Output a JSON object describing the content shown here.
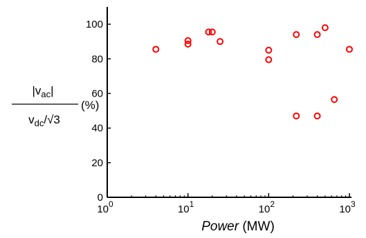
{
  "chart_data": {
    "type": "scatter",
    "title": "",
    "xlabel": {
      "italic": "Power",
      "unit": "(MW)"
    },
    "ylabel": {
      "numerator": {
        "main": "|v",
        "sub": "ac",
        "end": "|"
      },
      "denominator": {
        "main": "v",
        "sub": "dc",
        "slash": "/√3"
      },
      "unit": "(%)"
    },
    "xscale": "log",
    "xlim": [
      1,
      1000
    ],
    "ylim": [
      0,
      110
    ],
    "yticks": [
      "0",
      "20",
      "40",
      "60",
      "80",
      "100"
    ],
    "xticks": [
      {
        "base": "10",
        "exp": "0"
      },
      {
        "base": "10",
        "exp": "1"
      },
      {
        "base": "10",
        "exp": "2"
      },
      {
        "base": "10",
        "exp": "3"
      }
    ],
    "grid": false,
    "marker": "open-circle",
    "marker_color": "#ff0000",
    "points": [
      {
        "x": 4,
        "y": 85.5
      },
      {
        "x": 10,
        "y": 90.5
      },
      {
        "x": 10,
        "y": 88.5
      },
      {
        "x": 18,
        "y": 95.5
      },
      {
        "x": 20,
        "y": 95.5
      },
      {
        "x": 25,
        "y": 90
      },
      {
        "x": 100,
        "y": 85
      },
      {
        "x": 100,
        "y": 79.5
      },
      {
        "x": 220,
        "y": 94
      },
      {
        "x": 220,
        "y": 47
      },
      {
        "x": 400,
        "y": 94
      },
      {
        "x": 400,
        "y": 47
      },
      {
        "x": 500,
        "y": 98
      },
      {
        "x": 650,
        "y": 56.5
      },
      {
        "x": 1000,
        "y": 85.5
      }
    ]
  }
}
